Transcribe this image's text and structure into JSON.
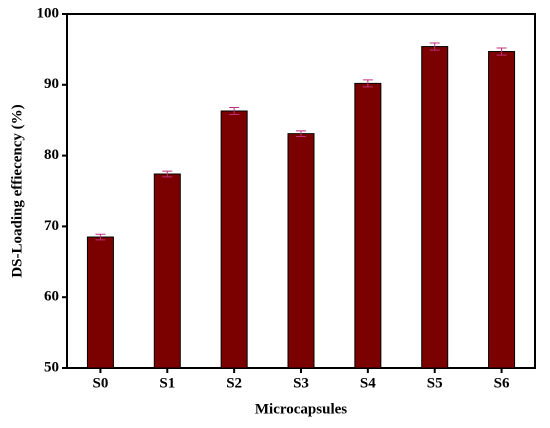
{
  "chart_data": {
    "type": "bar",
    "x_label": "Microcapsules",
    "y_label": "DS-Loading effiecency (%)",
    "categories": [
      "S0",
      "S1",
      "S2",
      "S3",
      "S4",
      "S5",
      "S6"
    ],
    "values": [
      68.5,
      77.4,
      86.3,
      83.1,
      90.2,
      95.4,
      94.7
    ],
    "errors": [
      0.4,
      0.4,
      0.5,
      0.4,
      0.5,
      0.5,
      0.5
    ],
    "color": "#7b0000",
    "error_color": "#c0307a",
    "ylim": [
      50,
      100
    ],
    "yticks": [
      50,
      60,
      70,
      80,
      90,
      100
    ]
  }
}
